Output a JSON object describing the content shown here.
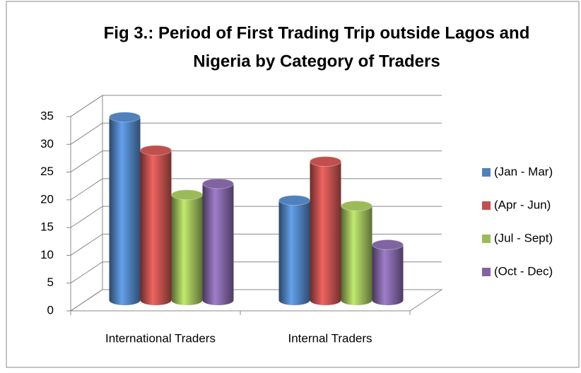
{
  "chart_data": {
    "type": "bar3d",
    "title": [
      "Fig 3.: Period of First Trading Trip outside Lagos and",
      "Nigeria  by Category of Traders"
    ],
    "categories": [
      "International Traders",
      "Internal Traders"
    ],
    "series": [
      {
        "name": "(Jan - Mar)",
        "color": "#4f81bd",
        "values": [
          33,
          18
        ]
      },
      {
        "name": "(Apr - Jun)",
        "color": "#c0504d",
        "values": [
          27,
          25
        ]
      },
      {
        "name": "(Jul - Sept)",
        "color": "#9bbb59",
        "values": [
          19,
          17
        ]
      },
      {
        "name": "(Oct - Dec)",
        "color": "#8064a2",
        "values": [
          21,
          10
        ]
      }
    ],
    "ylim": [
      0,
      35
    ],
    "yticks": [
      0,
      5,
      10,
      15,
      20,
      25,
      30,
      35
    ],
    "grid": true,
    "legend": "right"
  }
}
